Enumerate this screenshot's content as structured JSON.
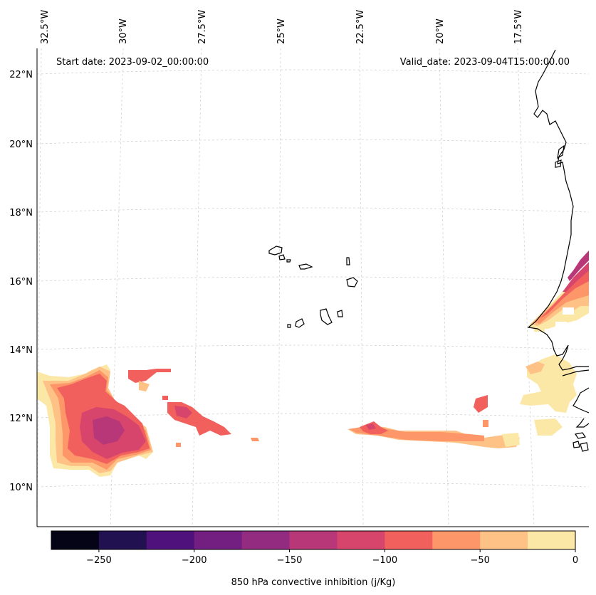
{
  "header": {
    "start_date": "Start date: 2023-09-02_00:00:00",
    "valid_date": "Valid_date: 2023-09-04T15:00:00.00"
  },
  "longitude_labels": [
    "32.5°W",
    "30°W",
    "27.5°W",
    "25°W",
    "22.5°W",
    "20°W",
    "17.5°W"
  ],
  "latitude_labels": [
    "22°N",
    "20°N",
    "18°N",
    "16°N",
    "14°N",
    "12°N",
    "10°N"
  ],
  "colorbar": {
    "label": "850 hPa convective inhibition (j/Kg)",
    "tick_labels": [
      "−250",
      "−200",
      "−150",
      "−100",
      "−50",
      "0"
    ],
    "levels": [
      -275,
      -250,
      -225,
      -200,
      -175,
      -150,
      -125,
      -100,
      -75,
      -50,
      -25,
      0
    ],
    "colors": [
      "#050417",
      "#221150",
      "#4f117b",
      "#721f81",
      "#932b80",
      "#b73779",
      "#d8456c",
      "#f1605d",
      "#fd9668",
      "#fec287",
      "#fce8a6"
    ]
  },
  "map_colors": {
    "coastline": "#000000",
    "grid": "#d3d3d3"
  }
}
